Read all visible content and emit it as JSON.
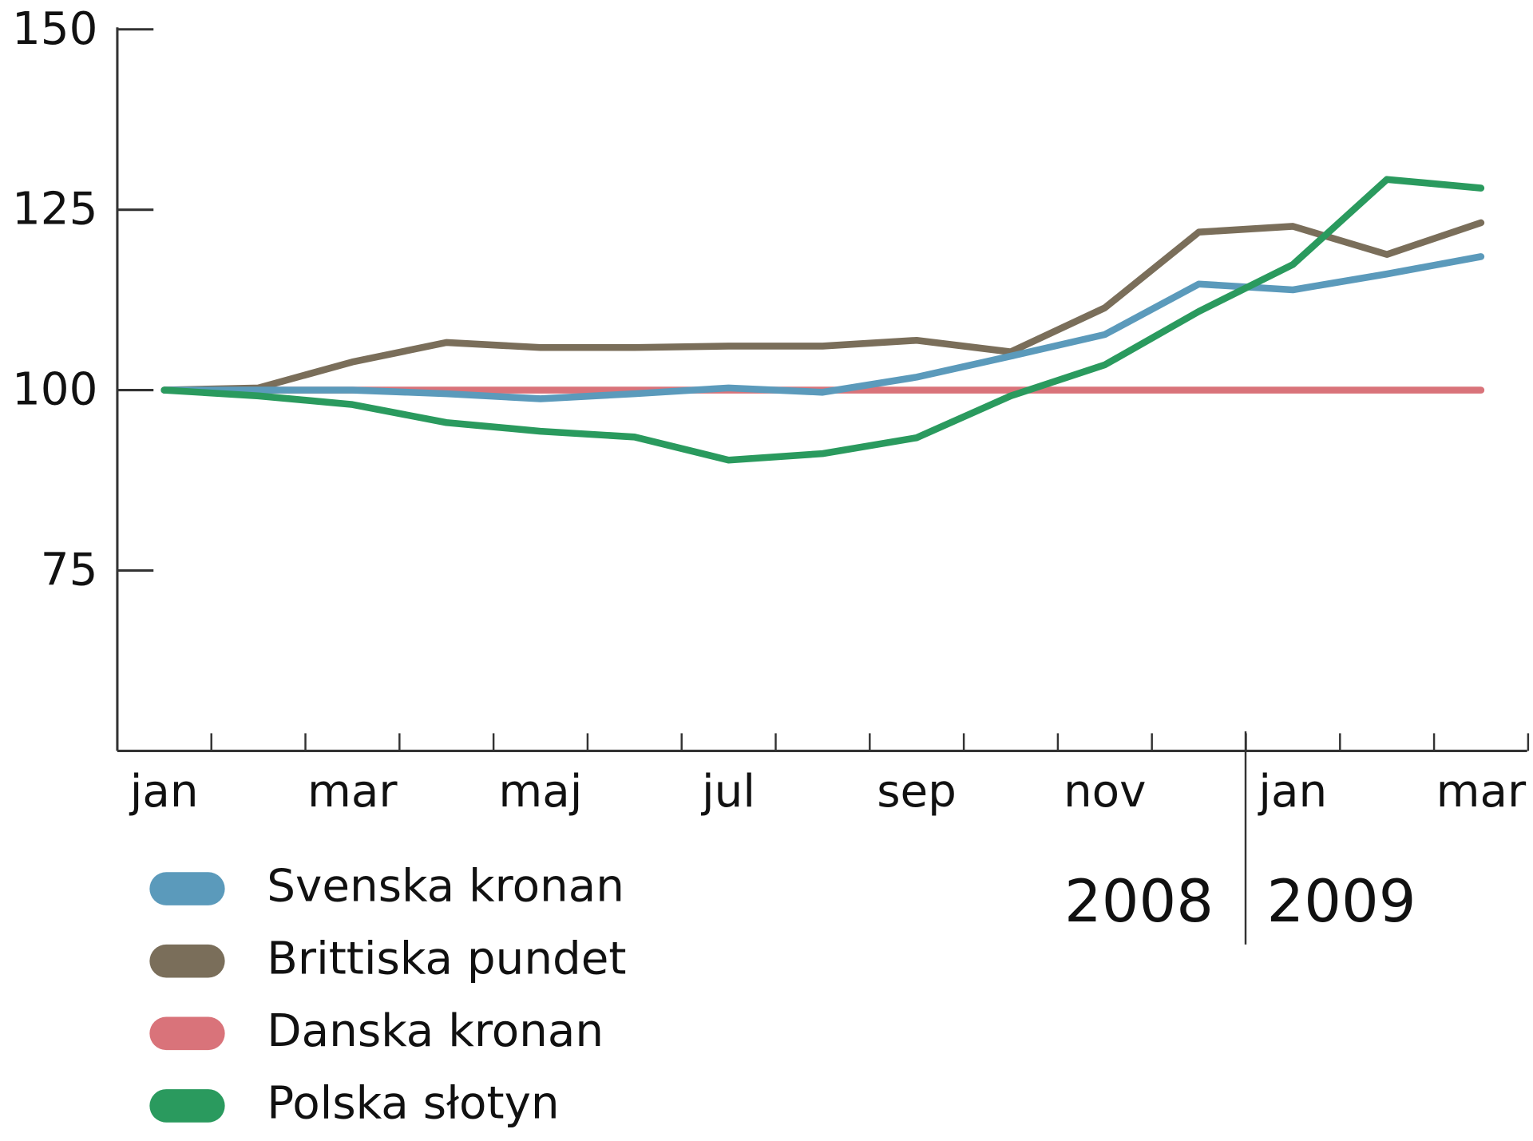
{
  "chart_data": {
    "type": "line",
    "categories": [
      "jan",
      null,
      "mar",
      null,
      "maj",
      null,
      "jul",
      null,
      "sep",
      null,
      "nov",
      null,
      "jan",
      null,
      "mar"
    ],
    "x_groups": [
      "2008",
      "2009"
    ],
    "ylim": [
      50,
      150
    ],
    "yticks": [
      75,
      100,
      125,
      150
    ],
    "series": [
      {
        "name": "Svenska kronan",
        "color": "#5b9abb",
        "values": [
          100,
          100,
          100,
          99.5,
          98.8,
          99.5,
          100.3,
          99.7,
          101.8,
          104.7,
          107.7,
          114.7,
          113.9,
          116.1,
          118.5
        ]
      },
      {
        "name": "Brittiska pundet",
        "color": "#7a6e5a",
        "values": [
          100,
          100.3,
          103.9,
          106.6,
          105.9,
          105.9,
          106.1,
          106.1,
          106.9,
          105.3,
          111.4,
          121.9,
          122.7,
          118.8,
          123.2
        ]
      },
      {
        "name": "Danska kronan",
        "color": "#d9737a",
        "values": [
          100,
          100,
          100,
          100,
          100,
          100,
          100,
          100,
          100,
          100,
          100,
          100,
          100,
          100,
          100
        ]
      },
      {
        "name": "Polska słotyn",
        "color": "#2a9a5e",
        "values": [
          100,
          99.2,
          98,
          95.5,
          94.3,
          93.5,
          90.3,
          91.2,
          93.4,
          99.2,
          103.5,
          110.9,
          117.4,
          129.2,
          128
        ]
      }
    ]
  }
}
